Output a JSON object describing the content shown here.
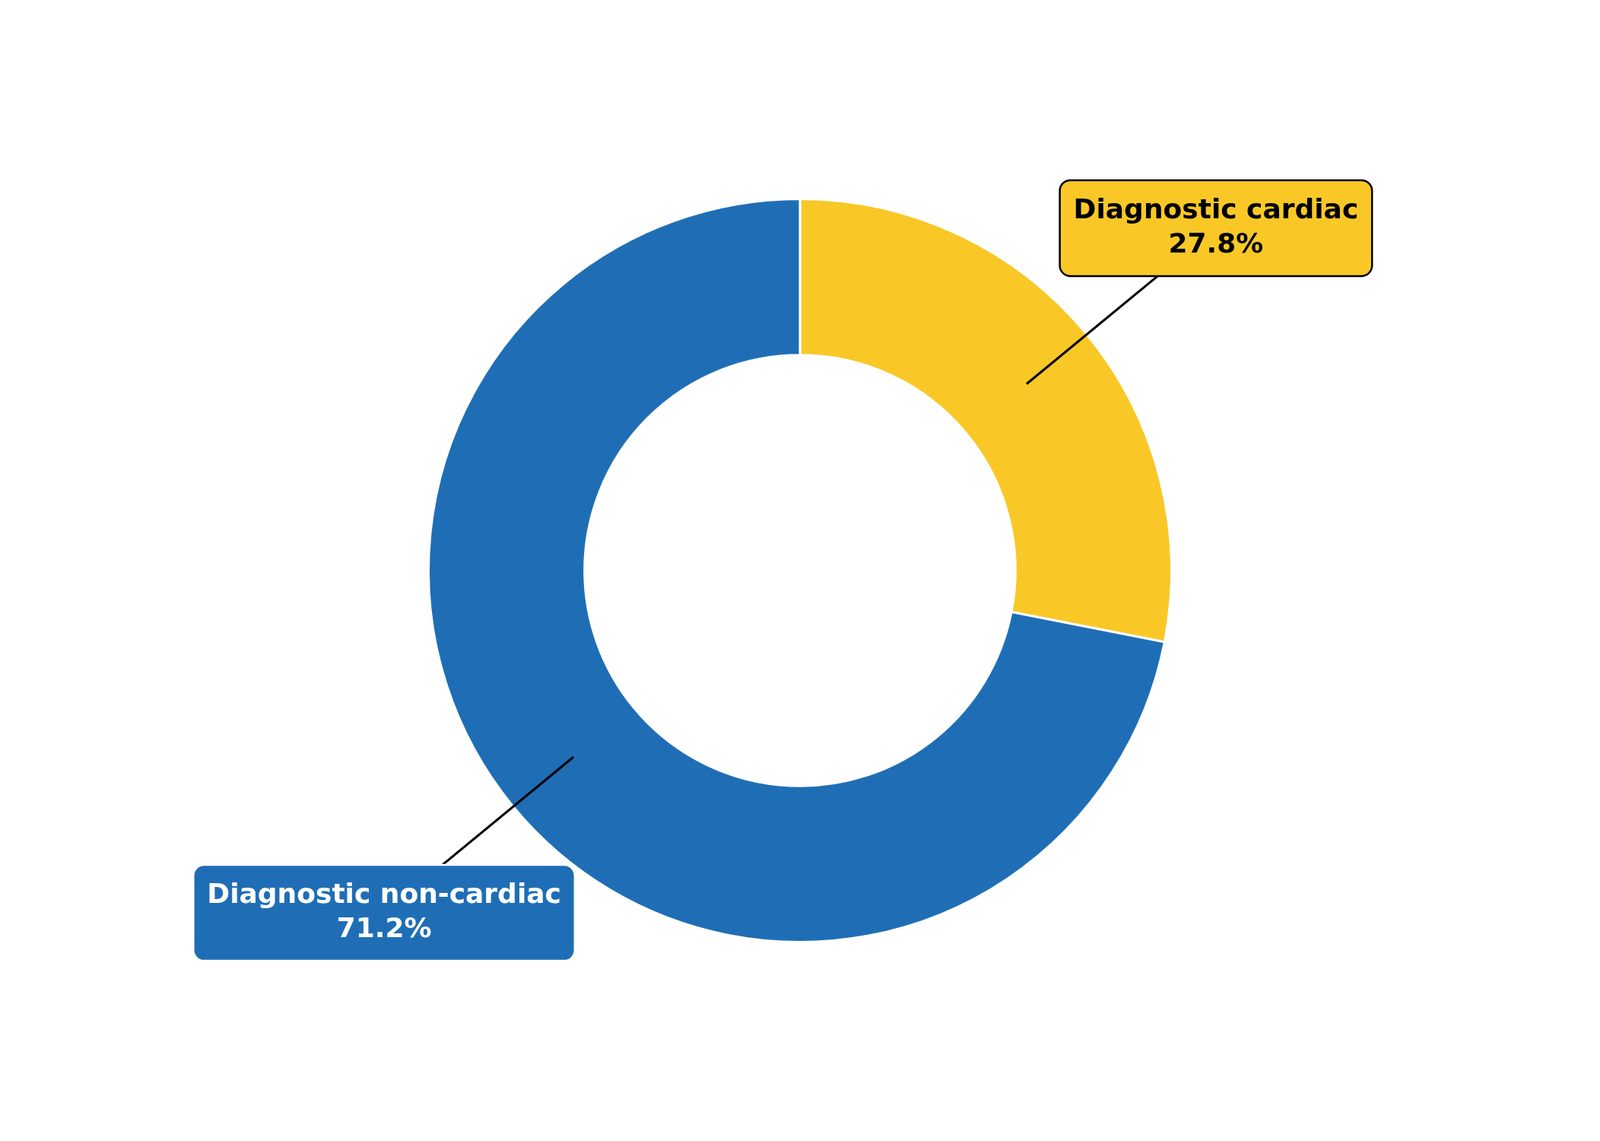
{
  "chart_data": {
    "type": "doughnut",
    "categories": [
      "Diagnostic cardiac",
      "Diagnostic non-cardiac"
    ],
    "values": [
      27.8,
      71.2
    ],
    "value_labels": [
      "27.8%",
      "71.2%"
    ],
    "colors": [
      "#f9c827",
      "#1f6eb5"
    ],
    "data_labels": true,
    "legend": false
  }
}
